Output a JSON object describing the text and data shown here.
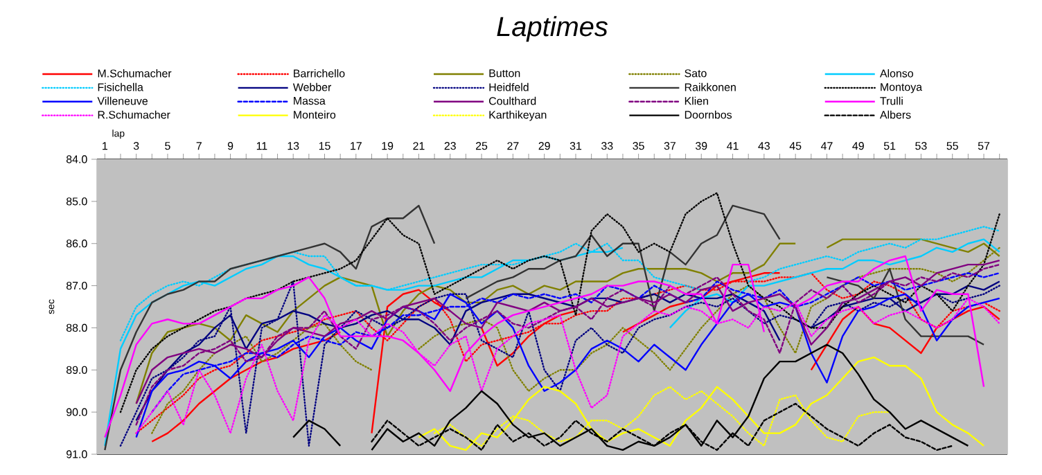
{
  "chart_data": {
    "type": "line",
    "title": "Laptimes",
    "xlabel": "lap",
    "ylabel": "sec",
    "legend": "top",
    "grid": "y",
    "marker": "none",
    "xlim": [
      0.5,
      58.5
    ],
    "ylim": [
      91,
      84
    ],
    "xticks": [
      1,
      {
        "value": 2,
        "label": null
      },
      3,
      {
        "value": 4,
        "label": null
      },
      5,
      {
        "value": 6,
        "label": null
      },
      7,
      {
        "value": 8,
        "label": null
      },
      9,
      {
        "value": 10,
        "label": null
      },
      11,
      {
        "value": 12,
        "label": null
      },
      13,
      {
        "value": 14,
        "label": null
      },
      15,
      {
        "value": 16,
        "label": null
      },
      17,
      {
        "value": 18,
        "label": null
      },
      19,
      {
        "value": 20,
        "label": null
      },
      21,
      {
        "value": 22,
        "label": null
      },
      23,
      {
        "value": 24,
        "label": null
      },
      25,
      {
        "value": 26,
        "label": null
      },
      27,
      {
        "value": 28,
        "label": null
      },
      29,
      {
        "value": 30,
        "label": null
      },
      31,
      {
        "value": 32,
        "label": null
      },
      33,
      {
        "value": 34,
        "label": null
      },
      35,
      {
        "value": 36,
        "label": null
      },
      37,
      {
        "value": 38,
        "label": null
      },
      39,
      {
        "value": 40,
        "label": null
      },
      41,
      {
        "value": 42,
        "label": null
      },
      43,
      {
        "value": 44,
        "label": null
      },
      45,
      {
        "value": 46,
        "label": null
      },
      47,
      {
        "value": 48,
        "label": null
      },
      49,
      {
        "value": 50,
        "label": null
      },
      51,
      {
        "value": 52,
        "label": null
      },
      53,
      {
        "value": 54,
        "label": null
      },
      55,
      {
        "value": 56,
        "label": null
      },
      57,
      {
        "value": 58,
        "label": null
      }
    ],
    "yticks": [
      {
        "value": 84,
        "label": "84.0"
      },
      {
        "value": 85,
        "label": "85.0"
      },
      {
        "value": 86,
        "label": "86.0"
      },
      {
        "value": 87,
        "label": "87.0"
      },
      {
        "value": 88,
        "label": "88.0"
      },
      {
        "value": 89,
        "label": "89.0"
      },
      {
        "value": 90,
        "label": "90.0"
      },
      {
        "value": 91,
        "label": "91.0"
      }
    ],
    "x": [
      1,
      2,
      3,
      4,
      5,
      6,
      7,
      8,
      9,
      10,
      11,
      12,
      13,
      14,
      15,
      16,
      17,
      18,
      19,
      20,
      21,
      22,
      23,
      24,
      25,
      26,
      27,
      28,
      29,
      30,
      31,
      32,
      33,
      34,
      35,
      36,
      37,
      38,
      39,
      40,
      41,
      42,
      43,
      44,
      45,
      46,
      47,
      48,
      49,
      50,
      51,
      52,
      53,
      54,
      55,
      56,
      57,
      58
    ],
    "series": [
      {
        "name": "M.Schumacher",
        "color": "#ff0000",
        "line_style": "solid",
        "values": [
          null,
          null,
          null,
          90.7,
          90.5,
          90.2,
          89.8,
          89.5,
          89.2,
          89.0,
          88.8,
          88.7,
          88.5,
          88.4,
          88.3,
          88.1,
          null,
          90.5,
          87.5,
          87.2,
          87.1,
          87.4,
          87.6,
          null,
          88.0,
          88.9,
          88.6,
          88.2,
          87.9,
          87.7,
          87.6,
          null,
          null,
          88.1,
          87.9,
          87.7,
          87.5,
          87.4,
          87.3,
          87.0,
          86.9,
          86.8,
          86.7,
          86.7,
          null,
          89.0,
          88.4,
          87.8,
          87.5,
          87.9,
          88.0,
          88.3,
          88.6,
          88.0,
          87.8,
          87.6,
          87.5,
          87.8
        ]
      },
      {
        "name": "Barrichello",
        "color": "#ff0000",
        "line_style": "dotted",
        "values": [
          null,
          null,
          90.5,
          90.2,
          89.9,
          89.6,
          89.2,
          89.0,
          88.9,
          88.6,
          88.3,
          88.2,
          88.1,
          88.0,
          87.8,
          87.7,
          87.6,
          88.0,
          88.3,
          87.9,
          87.5,
          87.3,
          87.8,
          88.8,
          88.4,
          88.3,
          88.2,
          88.1,
          87.9,
          87.9,
          87.7,
          87.6,
          87.6,
          87.3,
          87.3,
          87.2,
          87.1,
          87.0,
          87.1,
          87.1,
          86.9,
          86.9,
          86.9,
          86.8,
          86.8,
          86.7,
          87.1,
          87.3,
          87.2,
          86.9,
          87.0,
          87.2,
          87.8,
          88.0,
          87.6,
          87.5,
          87.4,
          87.6
        ]
      },
      {
        "name": "Button",
        "color": "#808000",
        "line_style": "solid",
        "values": [
          null,
          null,
          89.8,
          88.6,
          88.1,
          88.0,
          87.9,
          88.0,
          88.3,
          87.7,
          87.9,
          88.1,
          87.6,
          87.3,
          87.0,
          86.8,
          86.9,
          87.0,
          88.2,
          87.6,
          87.2,
          87.0,
          87.1,
          87.4,
          87.4,
          87.1,
          87.0,
          87.2,
          87.0,
          87.1,
          86.9,
          86.9,
          86.9,
          86.7,
          86.6,
          86.6,
          86.6,
          86.6,
          86.7,
          86.9,
          86.7,
          86.7,
          86.5,
          86.0,
          86.0,
          null,
          86.1,
          85.9,
          85.9,
          85.9,
          85.9,
          85.9,
          85.9,
          86.0,
          86.1,
          86.2,
          86.0,
          86.3
        ]
      },
      {
        "name": "Sato",
        "color": "#808000",
        "line_style": "dotted",
        "values": [
          null,
          null,
          null,
          90.5,
          89.8,
          89.5,
          89.0,
          88.6,
          88.4,
          88.2,
          88.8,
          88.6,
          88.3,
          88.0,
          87.9,
          88.4,
          88.8,
          89.0,
          null,
          null,
          88.5,
          88.2,
          88.0,
          87.9,
          87.8,
          88.0,
          89.0,
          89.5,
          89.2,
          89.0,
          89.0,
          88.6,
          88.4,
          88.0,
          88.3,
          88.6,
          89.0,
          88.5,
          88.0,
          87.6,
          87.2,
          87.0,
          87.3,
          88.0,
          88.6,
          87.5,
          87.3,
          87.0,
          86.8,
          86.7,
          86.6,
          86.6,
          86.6,
          86.7,
          86.9,
          86.7,
          86.4,
          86.1
        ]
      },
      {
        "name": "Alonso",
        "color": "#00ccff",
        "line_style": "solid",
        "values": [
          90.8,
          88.5,
          87.7,
          87.4,
          87.2,
          87.0,
          86.9,
          87.0,
          86.8,
          86.6,
          86.5,
          86.3,
          86.3,
          86.5,
          86.6,
          86.8,
          87.0,
          87.0,
          87.1,
          87.1,
          87.0,
          87.0,
          86.9,
          86.8,
          86.8,
          86.6,
          86.4,
          86.4,
          86.3,
          86.4,
          86.3,
          86.2,
          86.2,
          86.1,
          null,
          null,
          88.0,
          87.6,
          87.3,
          87.2,
          87.4,
          87.0,
          87.0,
          86.9,
          86.8,
          86.7,
          86.6,
          86.6,
          86.4,
          86.4,
          86.5,
          86.4,
          86.3,
          86.1,
          86.2,
          86.0,
          85.9,
          86.2
        ]
      },
      {
        "name": "Fisichella",
        "color": "#00ccff",
        "line_style": "dotted",
        "values": [
          null,
          88.3,
          87.5,
          87.2,
          87.0,
          86.9,
          87.0,
          86.8,
          86.6,
          86.5,
          86.4,
          86.3,
          86.2,
          86.3,
          86.3,
          86.8,
          87.0,
          87.0,
          87.1,
          87.0,
          86.9,
          86.8,
          86.7,
          86.6,
          86.5,
          86.5,
          86.5,
          86.4,
          86.3,
          86.2,
          86.0,
          86.2,
          86.0,
          86.4,
          86.4,
          86.8,
          86.9,
          87.0,
          87.1,
          null,
          null,
          86.9,
          86.8,
          86.6,
          86.5,
          86.4,
          86.3,
          86.4,
          86.2,
          86.1,
          86.0,
          86.1,
          85.9,
          85.9,
          85.8,
          85.7,
          85.6,
          85.7
        ]
      },
      {
        "name": "Webber",
        "color": "#000080",
        "line_style": "solid",
        "values": [
          null,
          null,
          90.2,
          89.5,
          89.0,
          88.6,
          88.4,
          88.0,
          87.7,
          88.5,
          87.9,
          87.8,
          87.6,
          87.7,
          87.9,
          88.0,
          87.9,
          87.7,
          87.6,
          87.8,
          87.8,
          88.0,
          88.4,
          87.6,
          87.4,
          87.3,
          87.2,
          87.2,
          87.3,
          87.4,
          87.5,
          87.3,
          87.3,
          87.4,
          87.3,
          87.2,
          87.4,
          87.2,
          87.3,
          87.3,
          87.2,
          87.4,
          87.6,
          88.3,
          null,
          88.0,
          87.8,
          87.5,
          87.4,
          87.3,
          87.3,
          87.6,
          87.4,
          87.2,
          87.2,
          87.0,
          87.1,
          86.9
        ]
      },
      {
        "name": "Heidfeld",
        "color": "#000080",
        "line_style": "dotted",
        "values": [
          null,
          90.8,
          90.0,
          89.2,
          89.0,
          88.7,
          88.3,
          88.2,
          87.5,
          90.5,
          88.0,
          87.8,
          86.9,
          90.8,
          88.4,
          88.0,
          87.6,
          87.8,
          88.0,
          87.8,
          87.5,
          87.3,
          87.2,
          87.2,
          88.3,
          88.5,
          88.7,
          87.6,
          89.0,
          89.5,
          88.3,
          88.0,
          88.4,
          88.6,
          88.0,
          87.8,
          87.7,
          87.5,
          87.4,
          87.5,
          87.3,
          87.6,
          87.9,
          87.7,
          87.8,
          88.0,
          87.5,
          87.4,
          87.6,
          87.4,
          87.5,
          87.3,
          87.4,
          87.2,
          87.4,
          87.3,
          87.2,
          87.0
        ]
      },
      {
        "name": "Raikkonen",
        "color": "#333333",
        "line_style": "solid",
        "values": [
          90.9,
          89.0,
          88.1,
          87.4,
          87.2,
          87.1,
          86.9,
          86.9,
          86.6,
          86.5,
          86.4,
          86.3,
          86.2,
          86.1,
          86.0,
          86.2,
          86.6,
          85.6,
          85.4,
          85.4,
          85.1,
          86.0,
          null,
          87.3,
          87.1,
          86.9,
          86.8,
          86.6,
          86.6,
          86.4,
          86.3,
          85.8,
          86.3,
          86.0,
          86.0,
          87.6,
          86.2,
          86.5,
          86.0,
          85.8,
          85.1,
          85.2,
          85.3,
          85.9,
          null,
          null,
          86.8,
          86.9,
          87.0,
          87.3,
          86.6,
          87.8,
          88.2,
          88.2,
          88.2,
          88.2,
          88.4,
          null
        ]
      },
      {
        "name": "Montoya",
        "color": "#000000",
        "line_style": "dotted",
        "values": [
          null,
          90.0,
          89.0,
          88.5,
          88.2,
          88.0,
          87.8,
          87.6,
          87.5,
          87.3,
          87.2,
          87.1,
          86.9,
          86.8,
          86.7,
          86.6,
          86.4,
          85.9,
          85.4,
          85.8,
          86.0,
          87.2,
          87.0,
          86.8,
          86.6,
          86.4,
          86.6,
          86.4,
          86.3,
          86.4,
          87.7,
          85.7,
          85.3,
          85.6,
          86.2,
          86.0,
          86.2,
          85.3,
          85.0,
          84.8,
          86.0,
          87.0,
          87.3,
          87.5,
          87.8,
          88.0,
          88.0,
          87.5,
          87.2,
          87.0,
          87.2,
          87.4,
          87.0,
          87.2,
          87.6,
          87.0,
          86.5,
          85.3
        ]
      },
      {
        "name": "Villeneuve",
        "color": "#0000ff",
        "line_style": "solid",
        "values": [
          null,
          null,
          90.6,
          89.5,
          89.1,
          89.0,
          88.8,
          88.9,
          89.2,
          88.8,
          88.6,
          88.5,
          88.3,
          88.7,
          88.2,
          88.0,
          88.3,
          88.5,
          87.8,
          87.5,
          87.6,
          87.8,
          87.2,
          87.4,
          87.9,
          87.6,
          88.0,
          88.9,
          89.5,
          89.3,
          89.0,
          88.5,
          88.3,
          88.5,
          88.8,
          88.4,
          88.7,
          89.0,
          88.4,
          87.9,
          87.4,
          87.2,
          87.5,
          87.4,
          87.5,
          88.6,
          89.3,
          88.2,
          87.6,
          87.5,
          87.3,
          87.2,
          87.5,
          88.3,
          87.8,
          87.5,
          87.4,
          87.3
        ]
      },
      {
        "name": "Massa",
        "color": "#0000ff",
        "line_style": "dashed",
        "values": [
          null,
          null,
          null,
          90.0,
          89.5,
          89.1,
          89.0,
          88.9,
          88.8,
          88.6,
          88.6,
          88.7,
          88.4,
          88.2,
          88.3,
          88.4,
          88.1,
          88.2,
          88.0,
          87.7,
          87.7,
          87.6,
          87.5,
          87.5,
          87.3,
          87.4,
          87.2,
          87.3,
          87.2,
          87.3,
          87.2,
          87.4,
          87.0,
          87.1,
          87.3,
          87.0,
          87.2,
          87.4,
          87.3,
          86.9,
          87.1,
          87.2,
          87.3,
          87.1,
          87.5,
          87.4,
          87.2,
          87.0,
          86.8,
          87.0,
          86.9,
          87.1,
          87.0,
          86.9,
          86.8,
          86.7,
          86.8,
          86.7
        ]
      },
      {
        "name": "Coulthard",
        "color": "#800080",
        "line_style": "solid",
        "values": [
          null,
          null,
          89.8,
          89.0,
          88.7,
          88.6,
          88.5,
          88.6,
          88.4,
          88.5,
          88.7,
          88.3,
          88.0,
          88.1,
          88.2,
          87.9,
          87.8,
          87.6,
          87.8,
          87.5,
          87.4,
          87.3,
          87.6,
          87.9,
          88.0,
          87.4,
          87.5,
          87.6,
          87.4,
          87.6,
          87.5,
          87.3,
          87.5,
          87.4,
          87.3,
          87.4,
          87.2,
          87.4,
          87.1,
          87.0,
          87.6,
          87.4,
          87.3,
          87.2,
          87.5,
          88.4,
          88.0,
          87.4,
          87.3,
          87.1,
          86.9,
          86.8,
          87.0,
          86.7,
          86.6,
          86.5,
          86.5,
          86.4
        ]
      },
      {
        "name": "Klien",
        "color": "#800080",
        "line_style": "dashed",
        "values": [
          null,
          null,
          90.3,
          89.4,
          89.0,
          88.9,
          88.6,
          88.5,
          88.3,
          88.8,
          88.7,
          88.2,
          88.0,
          88.0,
          87.6,
          88.2,
          88.5,
          87.8,
          87.7,
          87.5,
          87.6,
          87.9,
          88.3,
          88.0,
          87.8,
          87.6,
          87.9,
          88.0,
          87.8,
          87.6,
          87.5,
          87.8,
          87.3,
          87.1,
          87.3,
          87.5,
          87.0,
          87.2,
          87.0,
          86.8,
          87.2,
          87.6,
          87.8,
          88.6,
          87.4,
          87.1,
          87.3,
          87.0,
          87.4,
          87.2,
          86.9,
          87.0,
          86.8,
          86.9,
          86.7,
          86.8,
          86.6,
          86.5
        ]
      },
      {
        "name": "Trulli",
        "color": "#ff00ff",
        "line_style": "solid",
        "values": [
          90.6,
          89.6,
          88.4,
          87.9,
          87.8,
          87.9,
          87.9,
          87.7,
          87.5,
          87.3,
          87.3,
          87.1,
          87.0,
          86.8,
          87.3,
          88.2,
          88.2,
          88.2,
          88.2,
          88.3,
          88.6,
          89.0,
          89.5,
          88.6,
          88.2,
          87.9,
          87.7,
          87.6,
          87.5,
          87.4,
          87.3,
          87.2,
          87.0,
          87.0,
          86.9,
          86.9,
          87.0,
          87.2,
          87.2,
          87.9,
          86.5,
          86.5,
          88.1,
          null,
          87.5,
          87.3,
          87.0,
          86.9,
          86.9,
          86.6,
          86.4,
          86.3,
          87.6,
          87.1,
          87.2,
          87.2,
          89.4,
          null
        ]
      },
      {
        "name": "R.Schumacher",
        "color": "#ff00ff",
        "line_style": "dotted",
        "values": [
          null,
          null,
          90.5,
          90.0,
          89.5,
          90.3,
          89.0,
          89.6,
          90.5,
          89.2,
          88.4,
          89.5,
          90.2,
          88.3,
          87.7,
          88.0,
          87.8,
          88.2,
          87.9,
          88.1,
          88.6,
          88.9,
          88.4,
          88.2,
          89.5,
          88.5,
          88.2,
          87.9,
          87.8,
          87.7,
          89.0,
          89.9,
          89.6,
          88.2,
          87.9,
          87.6,
          87.7,
          87.5,
          87.6,
          87.9,
          87.8,
          88.0,
          87.5,
          87.6,
          87.4,
          88.2,
          87.8,
          87.6,
          87.5,
          87.9,
          87.7,
          87.6,
          87.8,
          88.0,
          87.8,
          87.3,
          87.5,
          87.9
        ]
      },
      {
        "name": "Monteiro",
        "color": "#ffff00",
        "line_style": "solid",
        "values": [
          null,
          null,
          null,
          null,
          null,
          null,
          null,
          null,
          null,
          null,
          null,
          null,
          null,
          null,
          null,
          null,
          null,
          null,
          null,
          null,
          90.6,
          90.4,
          90.8,
          90.9,
          90.5,
          90.6,
          90.2,
          89.7,
          89.4,
          89.5,
          89.8,
          90.4,
          90.7,
          90.5,
          90.4,
          90.6,
          90.8,
          90.2,
          89.9,
          89.4,
          89.7,
          90.1,
          90.5,
          90.5,
          90.3,
          89.8,
          89.6,
          89.2,
          88.8,
          88.7,
          88.9,
          88.9,
          89.2,
          90.0,
          90.3,
          90.5,
          90.8,
          null
        ]
      },
      {
        "name": "Karthikeyan",
        "color": "#ffff00",
        "line_style": "dotted",
        "values": [
          null,
          null,
          null,
          null,
          null,
          null,
          null,
          null,
          null,
          null,
          null,
          null,
          null,
          null,
          null,
          null,
          null,
          null,
          null,
          null,
          null,
          90.5,
          90.3,
          90.6,
          90.8,
          90.4,
          90.1,
          90.2,
          90.5,
          90.7,
          90.6,
          90.2,
          90.2,
          90.4,
          90.1,
          89.6,
          89.4,
          89.7,
          89.5,
          89.8,
          90.1,
          90.5,
          90.8,
          89.7,
          89.6,
          90.2,
          90.6,
          90.7,
          90.1,
          90.0,
          90.0,
          null,
          null,
          null,
          null,
          null,
          null,
          null
        ]
      },
      {
        "name": "Doornbos",
        "color": "#000000",
        "line_style": "solid",
        "values": [
          null,
          null,
          null,
          null,
          null,
          null,
          null,
          null,
          null,
          null,
          null,
          null,
          90.6,
          90.2,
          90.4,
          90.8,
          null,
          90.9,
          90.4,
          90.7,
          90.5,
          90.8,
          90.2,
          89.9,
          89.5,
          89.8,
          90.3,
          90.6,
          90.5,
          90.8,
          90.6,
          90.4,
          90.8,
          90.9,
          90.7,
          90.8,
          90.6,
          90.3,
          90.8,
          90.2,
          90.6,
          90.1,
          89.2,
          88.8,
          88.8,
          88.6,
          88.4,
          88.6,
          89.1,
          89.7,
          90.0,
          90.4,
          90.2,
          90.4,
          90.6,
          90.8,
          null,
          null
        ]
      },
      {
        "name": "Albers",
        "color": "#000000",
        "line_style": "dashed",
        "values": [
          null,
          null,
          null,
          null,
          null,
          null,
          null,
          null,
          null,
          null,
          null,
          null,
          null,
          null,
          null,
          null,
          null,
          90.7,
          90.2,
          90.5,
          90.8,
          90.6,
          90.4,
          90.6,
          90.9,
          90.3,
          90.7,
          90.5,
          90.8,
          90.6,
          90.2,
          90.5,
          90.7,
          90.4,
          90.6,
          90.8,
          90.5,
          90.3,
          90.7,
          90.9,
          90.5,
          90.8,
          90.2,
          90.0,
          89.8,
          90.1,
          90.4,
          90.6,
          90.8,
          90.5,
          90.3,
          90.6,
          90.7,
          90.9,
          90.8,
          null,
          null,
          null
        ]
      }
    ]
  }
}
